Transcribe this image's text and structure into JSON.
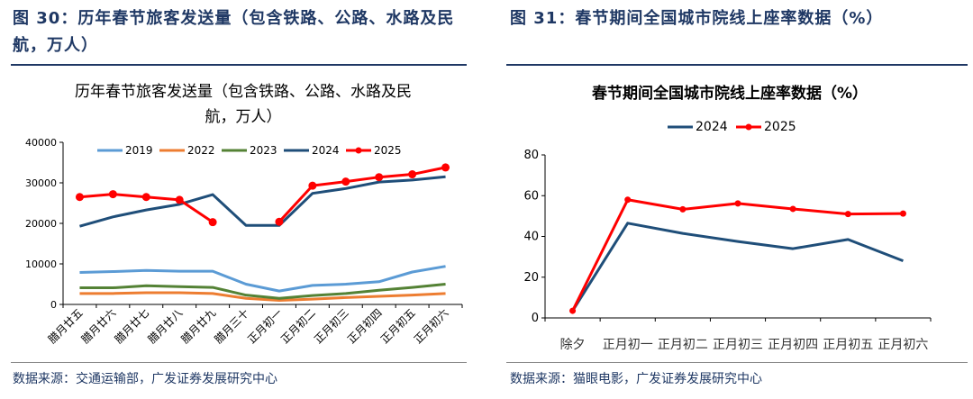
{
  "left": {
    "figure_title": "图 30：历年春节旅客发送量（包含铁路、公路、水路及民航，万人）",
    "source": "数据来源：交通运输部，广发证券发展研究中心"
  },
  "right": {
    "figure_title": "图 31：春节期间全国城市院线上座率数据（%）",
    "source": "数据来源：猫眼电影，广发证券发展研究中心"
  },
  "chart_data": [
    {
      "type": "line",
      "title": "历年春节旅客发送量（包含铁路、公路、水路及民航，万人）",
      "categories": [
        "腊月廿五",
        "腊月廿六",
        "腊月廿七",
        "腊月廿八",
        "腊月廿九",
        "腊月三十",
        "正月初一",
        "正月初二",
        "正月初三",
        "正月初四",
        "正月初五",
        "正月初六"
      ],
      "ylim": [
        0,
        40000
      ],
      "yticks": [
        0,
        10000,
        20000,
        30000,
        40000
      ],
      "legend": "top",
      "grid": false,
      "series": [
        {
          "name": "2019",
          "color": "#5b9bd5",
          "markers": false,
          "values": [
            7900,
            8100,
            8400,
            8200,
            8200,
            5000,
            3300,
            4700,
            5000,
            5600,
            8000,
            9400
          ]
        },
        {
          "name": "2022",
          "color": "#ed7d31",
          "markers": false,
          "values": [
            2700,
            2700,
            2900,
            2900,
            2700,
            1500,
            1000,
            1300,
            1700,
            2000,
            2300,
            2700
          ]
        },
        {
          "name": "2023",
          "color": "#548235",
          "markers": false,
          "values": [
            4100,
            4100,
            4600,
            4400,
            4200,
            2300,
            1500,
            2200,
            2700,
            3500,
            4200,
            5000
          ]
        },
        {
          "name": "2024",
          "color": "#1f4e79",
          "markers": false,
          "values": [
            19300,
            21600,
            23300,
            24700,
            27100,
            19500,
            19500,
            27400,
            28600,
            30200,
            30700,
            31500
          ]
        },
        {
          "name": "2025",
          "color": "#ff0000",
          "markers": true,
          "values": [
            26500,
            27200,
            26500,
            25800,
            20300,
            null,
            20400,
            29300,
            30300,
            31400,
            32100,
            33800
          ]
        }
      ]
    },
    {
      "type": "line",
      "title": "春节期间全国城市院线上座率数据（%）",
      "categories": [
        "除夕",
        "正月初一",
        "正月初二",
        "正月初三",
        "正月初四",
        "正月初五",
        "正月初六"
      ],
      "ylim": [
        0,
        80
      ],
      "yticks": [
        0,
        20,
        40,
        60,
        80
      ],
      "legend": "top",
      "grid": false,
      "series": [
        {
          "name": "2024",
          "color": "#1f4e79",
          "markers": false,
          "values": [
            3.5,
            46.5,
            41.5,
            37.5,
            34,
            38.5,
            28
          ]
        },
        {
          "name": "2025",
          "color": "#ff0000",
          "markers": true,
          "values": [
            3.5,
            58,
            53.3,
            56.2,
            53.5,
            51,
            51.2
          ]
        }
      ]
    }
  ]
}
